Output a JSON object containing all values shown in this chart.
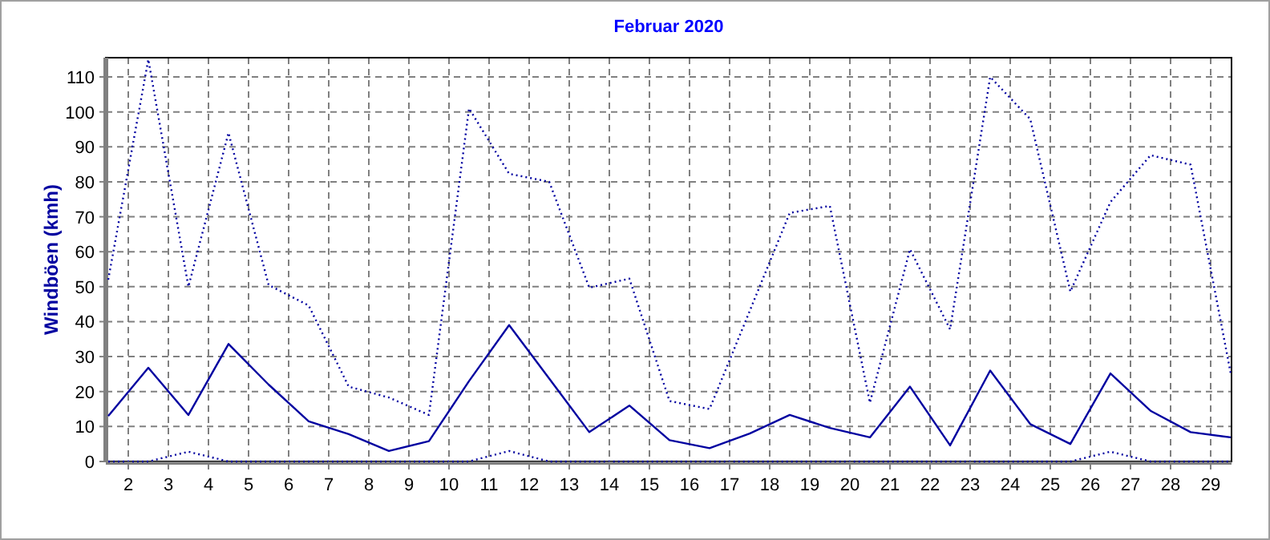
{
  "chart_data": {
    "type": "line",
    "title": "Februar 2020",
    "ylabel": "Windböen (kmh)",
    "x": [
      1.5,
      2.5,
      3.5,
      4.5,
      5.5,
      6.5,
      7.5,
      8.5,
      9.5,
      10.5,
      11.5,
      12.5,
      13.5,
      14.5,
      15.5,
      16.5,
      17.5,
      18.5,
      19.5,
      20.5,
      21.5,
      22.5,
      23.5,
      24.5,
      25.5,
      26.5,
      27.5,
      28.5,
      29.5
    ],
    "xlim": [
      1.44,
      29.52
    ],
    "xticks": [
      2,
      3,
      4,
      5,
      6,
      7,
      8,
      9,
      10,
      11,
      12,
      13,
      14,
      15,
      16,
      17,
      18,
      19,
      20,
      21,
      22,
      23,
      24,
      25,
      26,
      27,
      28,
      29
    ],
    "ylim": [
      0,
      115.5
    ],
    "yticks": [
      0,
      10,
      20,
      30,
      40,
      50,
      60,
      70,
      80,
      90,
      100,
      110
    ],
    "grid": true,
    "marker": "none",
    "series": [
      {
        "color": "#0000a0",
        "line_style": "dotted",
        "values": [
          52,
          115,
          50,
          94,
          50.5,
          44.6,
          21.4,
          18.3,
          13.3,
          101,
          82.3,
          80,
          49.7,
          52.3,
          17.3,
          15,
          43,
          71.1,
          73.1,
          16.8,
          60.7,
          37.8,
          110,
          97.9,
          48.6,
          74.2,
          87.6,
          84.9,
          25.2
        ]
      },
      {
        "color": "#0000a0",
        "line_style": "solid",
        "values": [
          13,
          26.8,
          13.3,
          33.6,
          22,
          11.5,
          7.8,
          3,
          5.8,
          23,
          39,
          23.7,
          8.4,
          16,
          6.1,
          3.8,
          8,
          13.3,
          9.6,
          6.9,
          21.4,
          4.6,
          26,
          10.7,
          5,
          25.2,
          14.5,
          8.4,
          6.9
        ]
      },
      {
        "color": "#0000a0",
        "line_style": "dotted",
        "values": [
          0,
          0,
          2.8,
          0,
          0,
          0,
          0,
          0,
          0,
          0,
          3,
          0,
          0,
          0,
          0,
          0,
          0,
          0,
          0,
          0,
          0,
          0,
          0,
          0,
          0,
          2.8,
          0,
          0,
          0
        ]
      }
    ]
  }
}
